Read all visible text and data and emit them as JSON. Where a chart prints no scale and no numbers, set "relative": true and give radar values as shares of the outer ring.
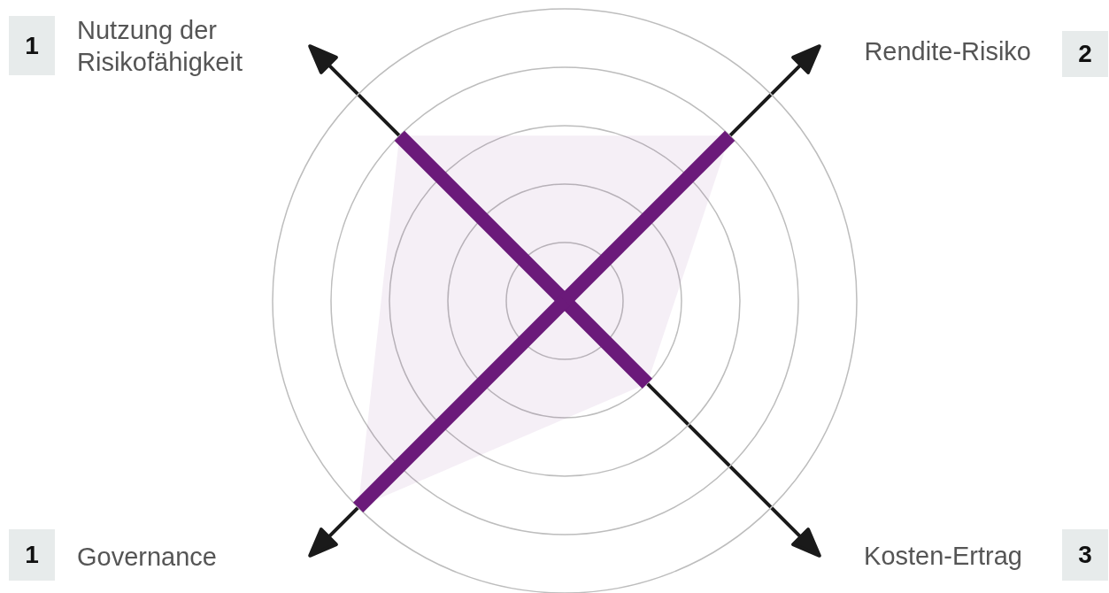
{
  "chart_data": {
    "type": "radar",
    "relative": true,
    "grid": true,
    "categories": [
      "Nutzung der Risikofähigkeit",
      "Rendite-Risiko",
      "Kosten-Ertrag",
      "Governance"
    ],
    "series": [
      {
        "color": "#6b1a7a",
        "values": [
          0.8,
          0.8,
          0.4,
          1.0
        ]
      }
    ],
    "annotations": [
      "1",
      "2",
      "3",
      "1"
    ]
  }
}
